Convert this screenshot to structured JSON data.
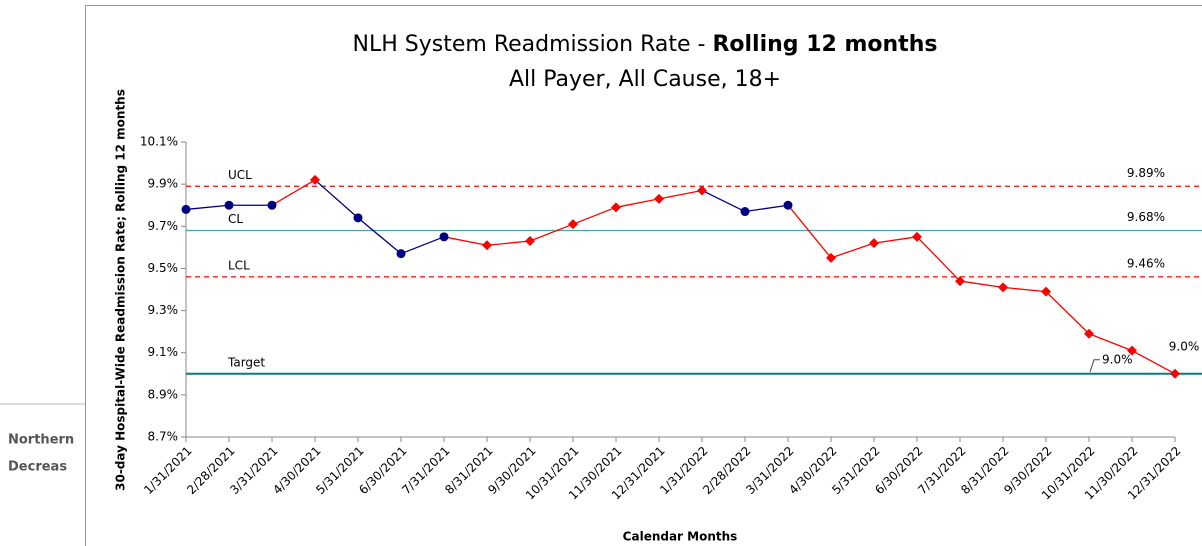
{
  "side_text": [
    "Northern",
    "Decreas"
  ],
  "chart_data": {
    "type": "line",
    "title": "NLH System Readmission Rate - ",
    "title_bold": "Rolling 12 months",
    "subtitle": "All Payer, All Cause, 18+",
    "y_label": "30-day Hospital-Wide Readmission Rate; Rolling 12 months",
    "x_label": "Calendar Months",
    "categories": [
      "1/31/2021",
      "2/28/2021",
      "3/31/2021",
      "4/30/2021",
      "5/31/2021",
      "6/30/2021",
      "7/31/2021",
      "8/31/2021",
      "9/30/2021",
      "10/31/2021",
      "11/30/2021",
      "12/31/2021",
      "1/31/2022",
      "2/28/2022",
      "3/31/2022",
      "4/30/2022",
      "5/31/2022",
      "6/30/2022",
      "7/31/2022",
      "8/31/2022",
      "9/30/2022",
      "10/31/2022",
      "11/30/2022",
      "12/31/2022"
    ],
    "series": [
      {
        "name": "Readmission Rate",
        "values": [
          9.78,
          9.8,
          9.8,
          9.92,
          9.74,
          9.57,
          9.65,
          9.61,
          9.63,
          9.71,
          9.79,
          9.83,
          9.87,
          9.77,
          9.8,
          9.55,
          9.62,
          9.65,
          9.44,
          9.41,
          9.39,
          9.19,
          9.11,
          9.0
        ],
        "point_colors": [
          "#000080",
          "#000080",
          "#000080",
          "#ff0000",
          "#000080",
          "#000080",
          "#000080",
          "#ff0000",
          "#ff0000",
          "#ff0000",
          "#ff0000",
          "#ff0000",
          "#ff0000",
          "#000080",
          "#000080",
          "#ff0000",
          "#ff0000",
          "#ff0000",
          "#ff0000",
          "#ff0000",
          "#ff0000",
          "#ff0000",
          "#ff0000",
          "#ff0000"
        ],
        "value_labels": [
          null,
          null,
          null,
          null,
          null,
          null,
          null,
          null,
          null,
          null,
          null,
          null,
          null,
          null,
          null,
          null,
          null,
          null,
          null,
          null,
          null,
          null,
          null,
          "9.0%"
        ]
      }
    ],
    "reference_lines": [
      {
        "name": "UCL",
        "value": 9.89,
        "label": "9.89%",
        "color": "#ff0000",
        "dashed": true
      },
      {
        "name": "CL",
        "value": 9.68,
        "label": "9.68%",
        "color": "#4aa6a6",
        "dashed": false
      },
      {
        "name": "LCL",
        "value": 9.46,
        "label": "9.46%",
        "color": "#ff0000",
        "dashed": true
      },
      {
        "name": "Target",
        "value": 9.0,
        "label": "9.0%",
        "color": "#008080",
        "dashed": false,
        "callout": true
      }
    ],
    "ylim": [
      8.7,
      10.1
    ],
    "yticks": [
      {
        "value": 8.7,
        "label": "8.7%"
      },
      {
        "value": 8.9,
        "label": "8.9%"
      },
      {
        "value": 9.1,
        "label": "9.1%"
      },
      {
        "value": 9.3,
        "label": "9.3%"
      },
      {
        "value": 9.5,
        "label": "9.5%"
      },
      {
        "value": 9.7,
        "label": "9.7%"
      },
      {
        "value": 9.9,
        "label": "9.9%"
      },
      {
        "value": 10.1,
        "label": "10.1%"
      }
    ]
  }
}
